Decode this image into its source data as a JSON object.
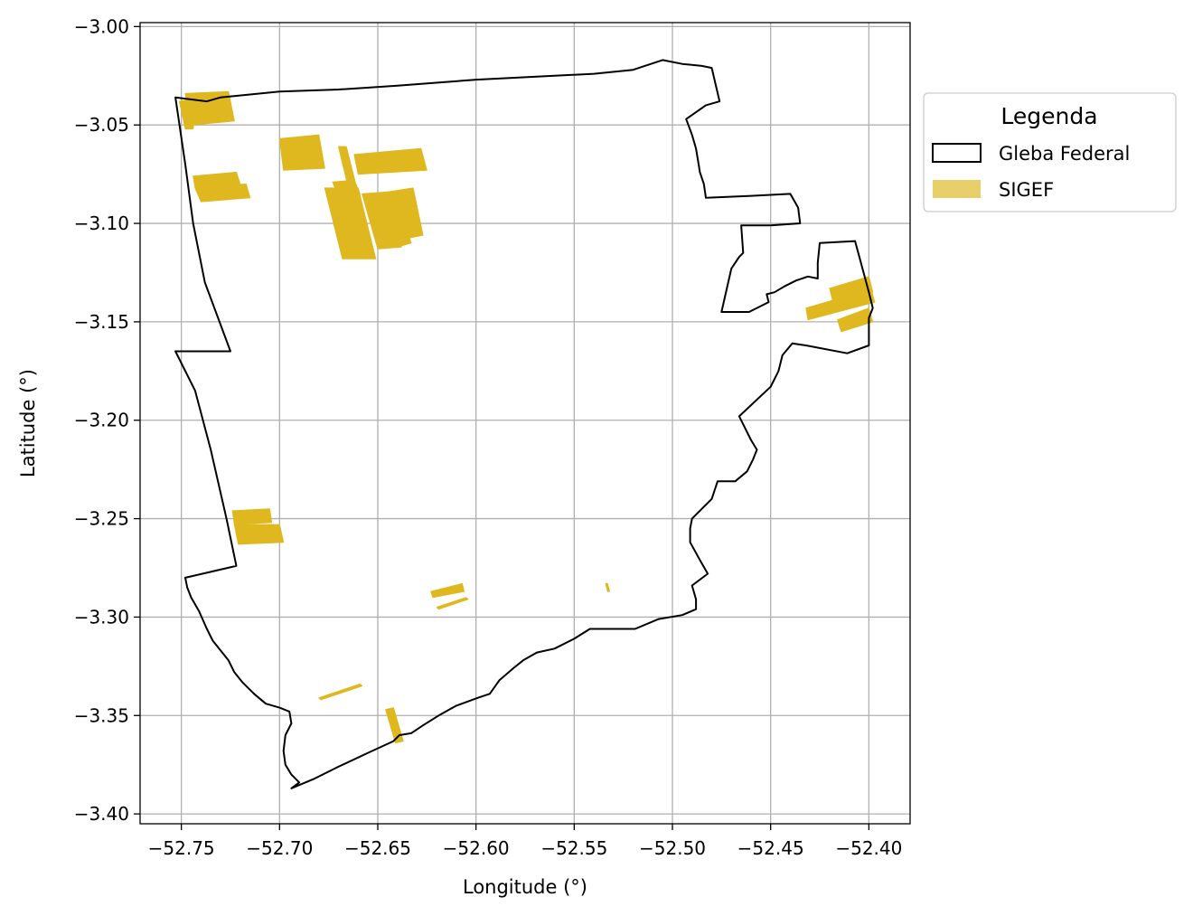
{
  "chart_data": {
    "type": "map",
    "xlabel": "Longitude (°)",
    "ylabel": "Latitude (°)",
    "xlim": [
      -52.771,
      -52.379
    ],
    "ylim": [
      -3.405,
      -2.998
    ],
    "xticks": [
      {
        "value": -52.75,
        "label": "−52.75"
      },
      {
        "value": -52.7,
        "label": "−52.70"
      },
      {
        "value": -52.65,
        "label": "−52.65"
      },
      {
        "value": -52.6,
        "label": "−52.60"
      },
      {
        "value": -52.55,
        "label": "−52.55"
      },
      {
        "value": -52.5,
        "label": "−52.50"
      },
      {
        "value": -52.45,
        "label": "−52.45"
      },
      {
        "value": -52.4,
        "label": "−52.40"
      }
    ],
    "yticks": [
      {
        "value": -3.0,
        "label": "−3.00"
      },
      {
        "value": -3.05,
        "label": "−3.05"
      },
      {
        "value": -3.1,
        "label": "−3.10"
      },
      {
        "value": -3.15,
        "label": "−3.15"
      },
      {
        "value": -3.2,
        "label": "−3.20"
      },
      {
        "value": -3.25,
        "label": "−3.25"
      },
      {
        "value": -3.3,
        "label": "−3.30"
      },
      {
        "value": -3.35,
        "label": "−3.35"
      },
      {
        "value": -3.4,
        "label": "−3.40"
      }
    ],
    "grid": true,
    "legend": {
      "title": "Legenda",
      "placement": "outside-right",
      "entries": [
        {
          "label": "Gleba Federal",
          "style": "outline",
          "color": "#000000"
        },
        {
          "label": "SIGEF",
          "style": "fill",
          "color": "#e8cf6a"
        }
      ]
    },
    "colors": {
      "outline": "#000000",
      "sigef_fill": "#dfb820",
      "grid": "#b0b0b0"
    },
    "series": [
      {
        "name": "Gleba Federal",
        "kind": "outline",
        "polygons": [
          [
            [
              -52.753,
              -3.036
            ],
            [
              -52.737,
              -3.038
            ],
            [
              -52.73,
              -3.036
            ],
            [
              -52.7,
              -3.033
            ],
            [
              -52.67,
              -3.032
            ],
            [
              -52.64,
              -3.03
            ],
            [
              -52.6,
              -3.027
            ],
            [
              -52.56,
              -3.025
            ],
            [
              -52.54,
              -3.024
            ],
            [
              -52.52,
              -3.022
            ],
            [
              -52.505,
              -3.017
            ],
            [
              -52.495,
              -3.019
            ],
            [
              -52.485,
              -3.02
            ],
            [
              -52.48,
              -3.021
            ],
            [
              -52.476,
              -3.038
            ],
            [
              -52.483,
              -3.04
            ],
            [
              -52.493,
              -3.047
            ],
            [
              -52.49,
              -3.055
            ],
            [
              -52.488,
              -3.062
            ],
            [
              -52.487,
              -3.068
            ],
            [
              -52.486,
              -3.074
            ],
            [
              -52.484,
              -3.08
            ],
            [
              -52.483,
              -3.087
            ],
            [
              -52.46,
              -3.086
            ],
            [
              -52.44,
              -3.085
            ],
            [
              -52.436,
              -3.092
            ],
            [
              -52.435,
              -3.1
            ],
            [
              -52.45,
              -3.101
            ],
            [
              -52.465,
              -3.101
            ],
            [
              -52.464,
              -3.115
            ],
            [
              -52.466,
              -3.117
            ],
            [
              -52.47,
              -3.123
            ],
            [
              -52.475,
              -3.145
            ],
            [
              -52.461,
              -3.145
            ],
            [
              -52.451,
              -3.14
            ],
            [
              -52.452,
              -3.136
            ],
            [
              -52.448,
              -3.135
            ],
            [
              -52.443,
              -3.132
            ],
            [
              -52.437,
              -3.129
            ],
            [
              -52.431,
              -3.127
            ],
            [
              -52.426,
              -3.128
            ],
            [
              -52.426,
              -3.12
            ],
            [
              -52.425,
              -3.11
            ],
            [
              -52.407,
              -3.109
            ],
            [
              -52.4,
              -3.135
            ],
            [
              -52.398,
              -3.143
            ],
            [
              -52.4,
              -3.148
            ],
            [
              -52.4,
              -3.162
            ],
            [
              -52.411,
              -3.166
            ],
            [
              -52.432,
              -3.162
            ],
            [
              -52.439,
              -3.161
            ],
            [
              -52.444,
              -3.167
            ],
            [
              -52.446,
              -3.175
            ],
            [
              -52.45,
              -3.183
            ],
            [
              -52.466,
              -3.198
            ],
            [
              -52.46,
              -3.21
            ],
            [
              -52.457,
              -3.215
            ],
            [
              -52.459,
              -3.22
            ],
            [
              -52.462,
              -3.226
            ],
            [
              -52.468,
              -3.231
            ],
            [
              -52.477,
              -3.231
            ],
            [
              -52.48,
              -3.24
            ],
            [
              -52.482,
              -3.242
            ],
            [
              -52.49,
              -3.25
            ],
            [
              -52.491,
              -3.255
            ],
            [
              -52.491,
              -3.262
            ],
            [
              -52.486,
              -3.271
            ],
            [
              -52.482,
              -3.278
            ],
            [
              -52.49,
              -3.284
            ],
            [
              -52.488,
              -3.291
            ],
            [
              -52.488,
              -3.296
            ],
            [
              -52.495,
              -3.299
            ],
            [
              -52.507,
              -3.301
            ],
            [
              -52.519,
              -3.306
            ],
            [
              -52.542,
              -3.306
            ],
            [
              -52.55,
              -3.311
            ],
            [
              -52.56,
              -3.316
            ],
            [
              -52.569,
              -3.318
            ],
            [
              -52.576,
              -3.322
            ],
            [
              -52.581,
              -3.326
            ],
            [
              -52.588,
              -3.332
            ],
            [
              -52.593,
              -3.339
            ],
            [
              -52.599,
              -3.341
            ],
            [
              -52.61,
              -3.345
            ],
            [
              -52.619,
              -3.35
            ],
            [
              -52.627,
              -3.355
            ],
            [
              -52.633,
              -3.359
            ],
            [
              -52.639,
              -3.36
            ],
            [
              -52.642,
              -3.363
            ],
            [
              -52.655,
              -3.369
            ],
            [
              -52.67,
              -3.376
            ],
            [
              -52.682,
              -3.382
            ],
            [
              -52.694,
              -3.387
            ],
            [
              -52.69,
              -3.384
            ],
            [
              -52.694,
              -3.38
            ],
            [
              -52.697,
              -3.375
            ],
            [
              -52.698,
              -3.368
            ],
            [
              -52.697,
              -3.36
            ],
            [
              -52.694,
              -3.354
            ],
            [
              -52.695,
              -3.348
            ],
            [
              -52.7,
              -3.346
            ],
            [
              -52.707,
              -3.344
            ],
            [
              -52.713,
              -3.339
            ],
            [
              -52.719,
              -3.333
            ],
            [
              -52.723,
              -3.328
            ],
            [
              -52.726,
              -3.322
            ],
            [
              -52.73,
              -3.317
            ],
            [
              -52.734,
              -3.312
            ],
            [
              -52.737,
              -3.306
            ],
            [
              -52.741,
              -3.297
            ],
            [
              -52.745,
              -3.29
            ],
            [
              -52.747,
              -3.285
            ],
            [
              -52.748,
              -3.28
            ],
            [
              -52.722,
              -3.274
            ],
            [
              -52.727,
              -3.25
            ],
            [
              -52.735,
              -3.215
            ],
            [
              -52.743,
              -3.185
            ],
            [
              -52.753,
              -3.165
            ],
            [
              -52.725,
              -3.165
            ],
            [
              -52.738,
              -3.13
            ],
            [
              -52.744,
              -3.1
            ],
            [
              -52.748,
              -3.07
            ],
            [
              -52.753,
              -3.036
            ]
          ]
        ]
      },
      {
        "name": "SIGEF",
        "kind": "fill",
        "polygons": [
          [
            [
              -52.748,
              -3.034
            ],
            [
              -52.726,
              -3.033
            ],
            [
              -52.723,
              -3.048
            ],
            [
              -52.745,
              -3.05
            ]
          ],
          [
            [
              -52.751,
              -3.038
            ],
            [
              -52.742,
              -3.036
            ],
            [
              -52.744,
              -3.052
            ],
            [
              -52.748,
              -3.052
            ]
          ],
          [
            [
              -52.7,
              -3.057
            ],
            [
              -52.68,
              -3.055
            ],
            [
              -52.677,
              -3.072
            ],
            [
              -52.698,
              -3.073
            ]
          ],
          [
            [
              -52.67,
              -3.061
            ],
            [
              -52.666,
              -3.061
            ],
            [
              -52.66,
              -3.085
            ],
            [
              -52.664,
              -3.086
            ]
          ],
          [
            [
              -52.662,
              -3.065
            ],
            [
              -52.628,
              -3.062
            ],
            [
              -52.625,
              -3.073
            ],
            [
              -52.66,
              -3.075
            ]
          ],
          [
            [
              -52.744,
              -3.076
            ],
            [
              -52.722,
              -3.074
            ],
            [
              -52.72,
              -3.08
            ],
            [
              -52.743,
              -3.082
            ]
          ],
          [
            [
              -52.743,
              -3.082
            ],
            [
              -52.717,
              -3.08
            ],
            [
              -52.715,
              -3.087
            ],
            [
              -52.74,
              -3.089
            ]
          ],
          [
            [
              -52.673,
              -3.079
            ],
            [
              -52.662,
              -3.078
            ],
            [
              -52.659,
              -3.085
            ],
            [
              -52.67,
              -3.086
            ]
          ],
          [
            [
              -52.677,
              -3.082
            ],
            [
              -52.66,
              -3.082
            ],
            [
              -52.651,
              -3.118
            ],
            [
              -52.668,
              -3.118
            ]
          ],
          [
            [
              -52.658,
              -3.085
            ],
            [
              -52.645,
              -3.084
            ],
            [
              -52.638,
              -3.112
            ],
            [
              -52.65,
              -3.113
            ]
          ],
          [
            [
              -52.645,
              -3.084
            ],
            [
              -52.632,
              -3.082
            ],
            [
              -52.627,
              -3.106
            ],
            [
              -52.637,
              -3.108
            ]
          ],
          [
            [
              -52.648,
              -3.088
            ],
            [
              -52.64,
              -3.088
            ],
            [
              -52.633,
              -3.11
            ],
            [
              -52.64,
              -3.112
            ]
          ],
          [
            [
              -52.724,
              -3.246
            ],
            [
              -52.705,
              -3.245
            ],
            [
              -52.704,
              -3.252
            ],
            [
              -52.723,
              -3.253
            ]
          ],
          [
            [
              -52.723,
              -3.253
            ],
            [
              -52.7,
              -3.253
            ],
            [
              -52.698,
              -3.262
            ],
            [
              -52.721,
              -3.263
            ]
          ],
          [
            [
              -52.623,
              -3.287
            ],
            [
              -52.607,
              -3.283
            ],
            [
              -52.606,
              -3.287
            ],
            [
              -52.622,
              -3.29
            ]
          ],
          [
            [
              -52.62,
              -3.295
            ],
            [
              -52.605,
              -3.29
            ],
            [
              -52.604,
              -3.291
            ],
            [
              -52.619,
              -3.296
            ]
          ],
          [
            [
              -52.534,
              -3.283
            ],
            [
              -52.533,
              -3.283
            ],
            [
              -52.532,
              -3.287
            ],
            [
              -52.533,
              -3.287
            ]
          ],
          [
            [
              -52.68,
              -3.341
            ],
            [
              -52.659,
              -3.334
            ],
            [
              -52.658,
              -3.335
            ],
            [
              -52.679,
              -3.342
            ]
          ],
          [
            [
              -52.646,
              -3.347
            ],
            [
              -52.642,
              -3.346
            ],
            [
              -52.637,
              -3.363
            ],
            [
              -52.641,
              -3.364
            ]
          ],
          [
            [
              -52.42,
              -3.133
            ],
            [
              -52.4,
              -3.127
            ],
            [
              -52.398,
              -3.135
            ],
            [
              -52.418,
              -3.141
            ]
          ],
          [
            [
              -52.432,
              -3.143
            ],
            [
              -52.418,
              -3.139
            ],
            [
              -52.416,
              -3.145
            ],
            [
              -52.431,
              -3.149
            ]
          ],
          [
            [
              -52.418,
              -3.139
            ],
            [
              -52.399,
              -3.133
            ],
            [
              -52.397,
              -3.14
            ],
            [
              -52.416,
              -3.145
            ]
          ],
          [
            [
              -52.416,
              -3.149
            ],
            [
              -52.4,
              -3.143
            ],
            [
              -52.398,
              -3.15
            ],
            [
              -52.414,
              -3.155
            ]
          ]
        ]
      }
    ]
  }
}
